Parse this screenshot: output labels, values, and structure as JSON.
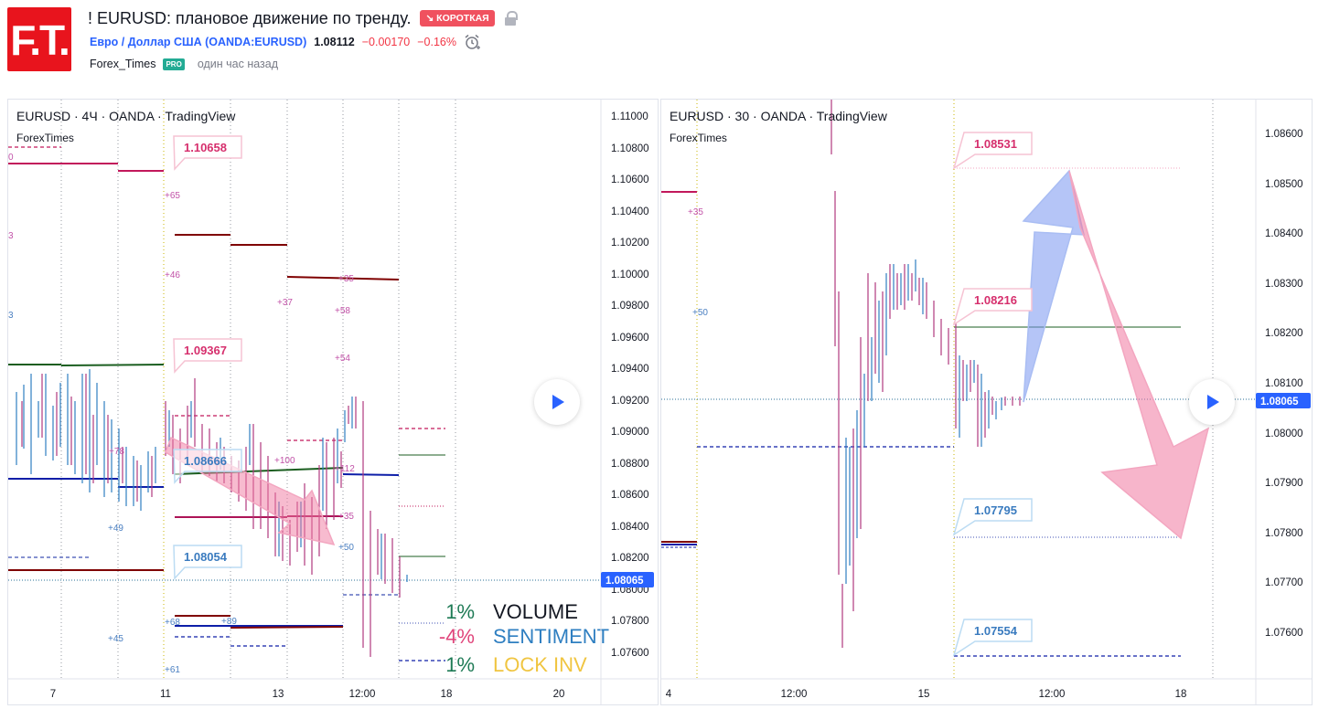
{
  "header": {
    "logo_text": "F.T.",
    "title": "! EURUSD: плановое движение по тренду.",
    "direction_badge": "↘ КОРОТКАЯ",
    "symbol_name": "Евро / Доллар США",
    "symbol_ticker": "(OANDA:EURUSD)",
    "last_price": "1.08112",
    "change": "−0.00170",
    "change_pct": "−0.16%",
    "author": "Forex_Times",
    "author_badge": "PRO",
    "published": "один час назад",
    "icons": [
      "lock-icon",
      "alarm-clock-icon",
      "play-icon"
    ]
  },
  "colors": {
    "brand": "#e8141d",
    "accent": "#2962ff",
    "short": "#f0515f",
    "negative": "#f23645",
    "pro": "#22ab94"
  },
  "charts": [
    {
      "legend": "EURUSD · 4Ч · OANDA · TradingView",
      "indicator": "ForexTimes",
      "price_axis": [
        "1.11000",
        "1.10800",
        "1.10600",
        "1.10400",
        "1.10200",
        "1.10000",
        "1.09800",
        "1.09600",
        "1.09400",
        "1.09200",
        "1.09000",
        "1.08800",
        "1.08600",
        "1.08400",
        "1.08200",
        "1.08000",
        "1.07800",
        "1.07600"
      ],
      "current_price": "1.08065",
      "time_axis": [
        "7",
        "11",
        "13",
        "12:00",
        "18",
        "20"
      ],
      "callouts": [
        "1.10658",
        "1.09367",
        "1.08666",
        "1.08054"
      ],
      "level_labels": [
        "+65",
        "+46",
        "+37",
        "+35",
        "+58",
        "+54",
        "+78",
        "+100",
        "+112",
        "+35",
        "+50",
        "+49",
        "+68",
        "+89",
        "+45",
        "+61",
        "0",
        "3",
        "3"
      ],
      "stats": [
        {
          "value": "1%",
          "label": "VOLUME",
          "value_color": "#1e7a55",
          "label_color": "#131722"
        },
        {
          "value": "-4%",
          "label": "SENTIMENT",
          "value_color": "#e0457b",
          "label_color": "#2f7fc1"
        },
        {
          "value": "1%",
          "label": "LOCK INV",
          "value_color": "#1e7a55",
          "label_color": "#f0c541"
        }
      ]
    },
    {
      "legend": "EURUSD · 30 · OANDA · TradingView",
      "indicator": "ForexTimes",
      "price_axis": [
        "1.08600",
        "1.08500",
        "1.08400",
        "1.08300",
        "1.08200",
        "1.08100",
        "1.08000",
        "1.07900",
        "1.07800",
        "1.07700",
        "1.07600"
      ],
      "current_price": "1.08065",
      "time_axis": [
        "4",
        "12:00",
        "15",
        "12:00",
        "18"
      ],
      "callouts": [
        "1.08531",
        "1.08216",
        "1.07795",
        "1.07554"
      ],
      "level_labels": [
        "+35",
        "+50"
      ]
    }
  ]
}
